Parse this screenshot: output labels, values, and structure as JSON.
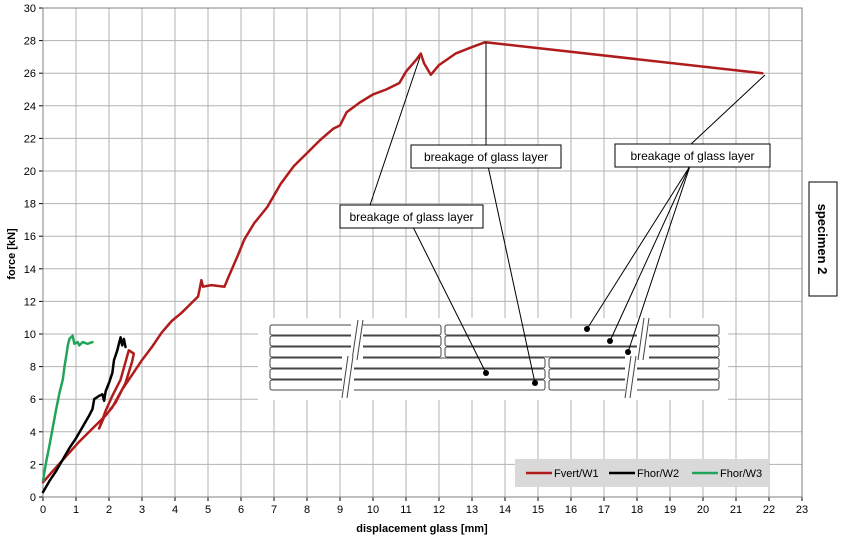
{
  "chart_data": {
    "type": "line",
    "xlabel": "displacement glass [mm]",
    "ylabel": "force [kN]",
    "xlim": [
      0,
      23
    ],
    "ylim": [
      0,
      30
    ],
    "xticks": [
      "0",
      "1",
      "2",
      "3",
      "4",
      "5",
      "6",
      "7",
      "8",
      "9",
      "10",
      "11",
      "12",
      "13",
      "14",
      "15",
      "16",
      "17",
      "18",
      "19",
      "20",
      "21",
      "22",
      "23"
    ],
    "yticks": [
      "0",
      "2",
      "4",
      "6",
      "8",
      "10",
      "12",
      "14",
      "16",
      "18",
      "20",
      "22",
      "24",
      "26",
      "28",
      "30"
    ],
    "grid": true,
    "legend_position": "bottom-right",
    "side_label": "specimen 2",
    "series": [
      {
        "name": "Fvert/W1",
        "color": "#b01c1c",
        "points": [
          [
            0,
            0.9
          ],
          [
            0.3,
            1.6
          ],
          [
            0.7,
            2.5
          ],
          [
            1.1,
            3.4
          ],
          [
            1.5,
            4.2
          ],
          [
            1.9,
            5.0
          ],
          [
            2.2,
            5.8
          ],
          [
            2.5,
            7.0
          ],
          [
            2.7,
            8.3
          ],
          [
            2.75,
            8.8
          ],
          [
            2.6,
            9.0
          ],
          [
            2.35,
            7.2
          ],
          [
            2.1,
            6.2
          ],
          [
            1.9,
            5.3
          ],
          [
            1.7,
            4.2
          ],
          [
            1.85,
            4.9
          ],
          [
            2.1,
            5.5
          ],
          [
            2.4,
            6.6
          ],
          [
            2.7,
            7.5
          ],
          [
            3.0,
            8.4
          ],
          [
            3.3,
            9.2
          ],
          [
            3.6,
            10.1
          ],
          [
            3.9,
            10.8
          ],
          [
            4.2,
            11.3
          ],
          [
            4.5,
            11.9
          ],
          [
            4.7,
            12.3
          ],
          [
            4.8,
            13.3
          ],
          [
            4.85,
            12.9
          ],
          [
            5.1,
            13.0
          ],
          [
            5.5,
            12.9
          ],
          [
            5.6,
            13.4
          ],
          [
            5.9,
            14.8
          ],
          [
            6.1,
            15.8
          ],
          [
            6.4,
            16.8
          ],
          [
            6.8,
            17.8
          ],
          [
            7.2,
            19.2
          ],
          [
            7.6,
            20.3
          ],
          [
            8.0,
            21.1
          ],
          [
            8.4,
            21.9
          ],
          [
            8.8,
            22.6
          ],
          [
            9.0,
            22.8
          ],
          [
            9.2,
            23.6
          ],
          [
            9.6,
            24.2
          ],
          [
            10.0,
            24.7
          ],
          [
            10.4,
            25.0
          ],
          [
            10.8,
            25.4
          ],
          [
            11.0,
            26.1
          ],
          [
            11.3,
            26.8
          ],
          [
            11.45,
            27.2
          ],
          [
            11.55,
            26.6
          ],
          [
            11.75,
            25.9
          ],
          [
            12.0,
            26.5
          ],
          [
            12.5,
            27.2
          ],
          [
            13.0,
            27.6
          ],
          [
            13.4,
            27.9
          ],
          [
            21.8,
            26.0
          ]
        ]
      },
      {
        "name": "Fhor/W2",
        "color": "#000000",
        "points": [
          [
            0,
            0.3
          ],
          [
            0.2,
            1.0
          ],
          [
            0.4,
            1.6
          ],
          [
            0.6,
            2.3
          ],
          [
            0.8,
            3.0
          ],
          [
            1.0,
            3.6
          ],
          [
            1.2,
            4.3
          ],
          [
            1.4,
            5.0
          ],
          [
            1.5,
            5.4
          ],
          [
            1.55,
            6.0
          ],
          [
            1.7,
            6.2
          ],
          [
            1.8,
            6.3
          ],
          [
            1.85,
            5.9
          ],
          [
            1.9,
            6.5
          ],
          [
            2.0,
            7.0
          ],
          [
            2.1,
            7.6
          ],
          [
            2.15,
            8.4
          ],
          [
            2.25,
            9.0
          ],
          [
            2.3,
            9.4
          ],
          [
            2.35,
            9.8
          ],
          [
            2.4,
            9.3
          ],
          [
            2.45,
            9.7
          ],
          [
            2.5,
            9.2
          ]
        ]
      },
      {
        "name": "Fhor/W3",
        "color": "#22a55a",
        "points": [
          [
            0,
            1.0
          ],
          [
            0.1,
            2.2
          ],
          [
            0.2,
            3.2
          ],
          [
            0.3,
            4.3
          ],
          [
            0.4,
            5.4
          ],
          [
            0.5,
            6.4
          ],
          [
            0.6,
            7.2
          ],
          [
            0.65,
            8.0
          ],
          [
            0.7,
            8.6
          ],
          [
            0.75,
            9.3
          ],
          [
            0.8,
            9.7
          ],
          [
            0.9,
            9.9
          ],
          [
            0.95,
            9.4
          ],
          [
            1.05,
            9.5
          ],
          [
            1.1,
            9.3
          ],
          [
            1.2,
            9.5
          ],
          [
            1.35,
            9.4
          ],
          [
            1.5,
            9.5
          ]
        ]
      }
    ],
    "annotations": [
      {
        "text": "breakage of glass layer"
      },
      {
        "text": "breakage of glass layer"
      },
      {
        "text": "breakage of glass layer"
      }
    ]
  }
}
